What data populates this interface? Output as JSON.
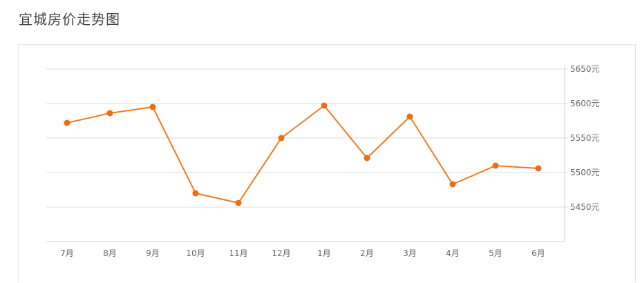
{
  "page": {
    "title": "宜城房价走势图"
  },
  "colors": {
    "line": "#f07a1d",
    "marker": "#f06c12",
    "grid": "#dcdcdc",
    "text": "#666666"
  },
  "chart_data": {
    "type": "line",
    "title": "宜城房价走势图",
    "xlabel": "",
    "ylabel": "",
    "categories": [
      "7月",
      "8月",
      "9月",
      "10月",
      "11月",
      "12月",
      "1月",
      "2月",
      "3月",
      "4月",
      "5月",
      "6月"
    ],
    "series": [
      {
        "values": [
          5572,
          5586,
          5595,
          5470,
          5456,
          5550,
          5597,
          5521,
          5581,
          5483,
          5510,
          5506
        ]
      }
    ],
    "ylim": [
      5400,
      5650
    ],
    "y_ticks": [
      5450,
      5500,
      5550,
      5600,
      5650
    ],
    "y_tick_labels": [
      "5450元",
      "5500元",
      "5550元",
      "5600元",
      "5650元"
    ],
    "y_axis_position": "right",
    "grid": true,
    "legend": "none"
  }
}
